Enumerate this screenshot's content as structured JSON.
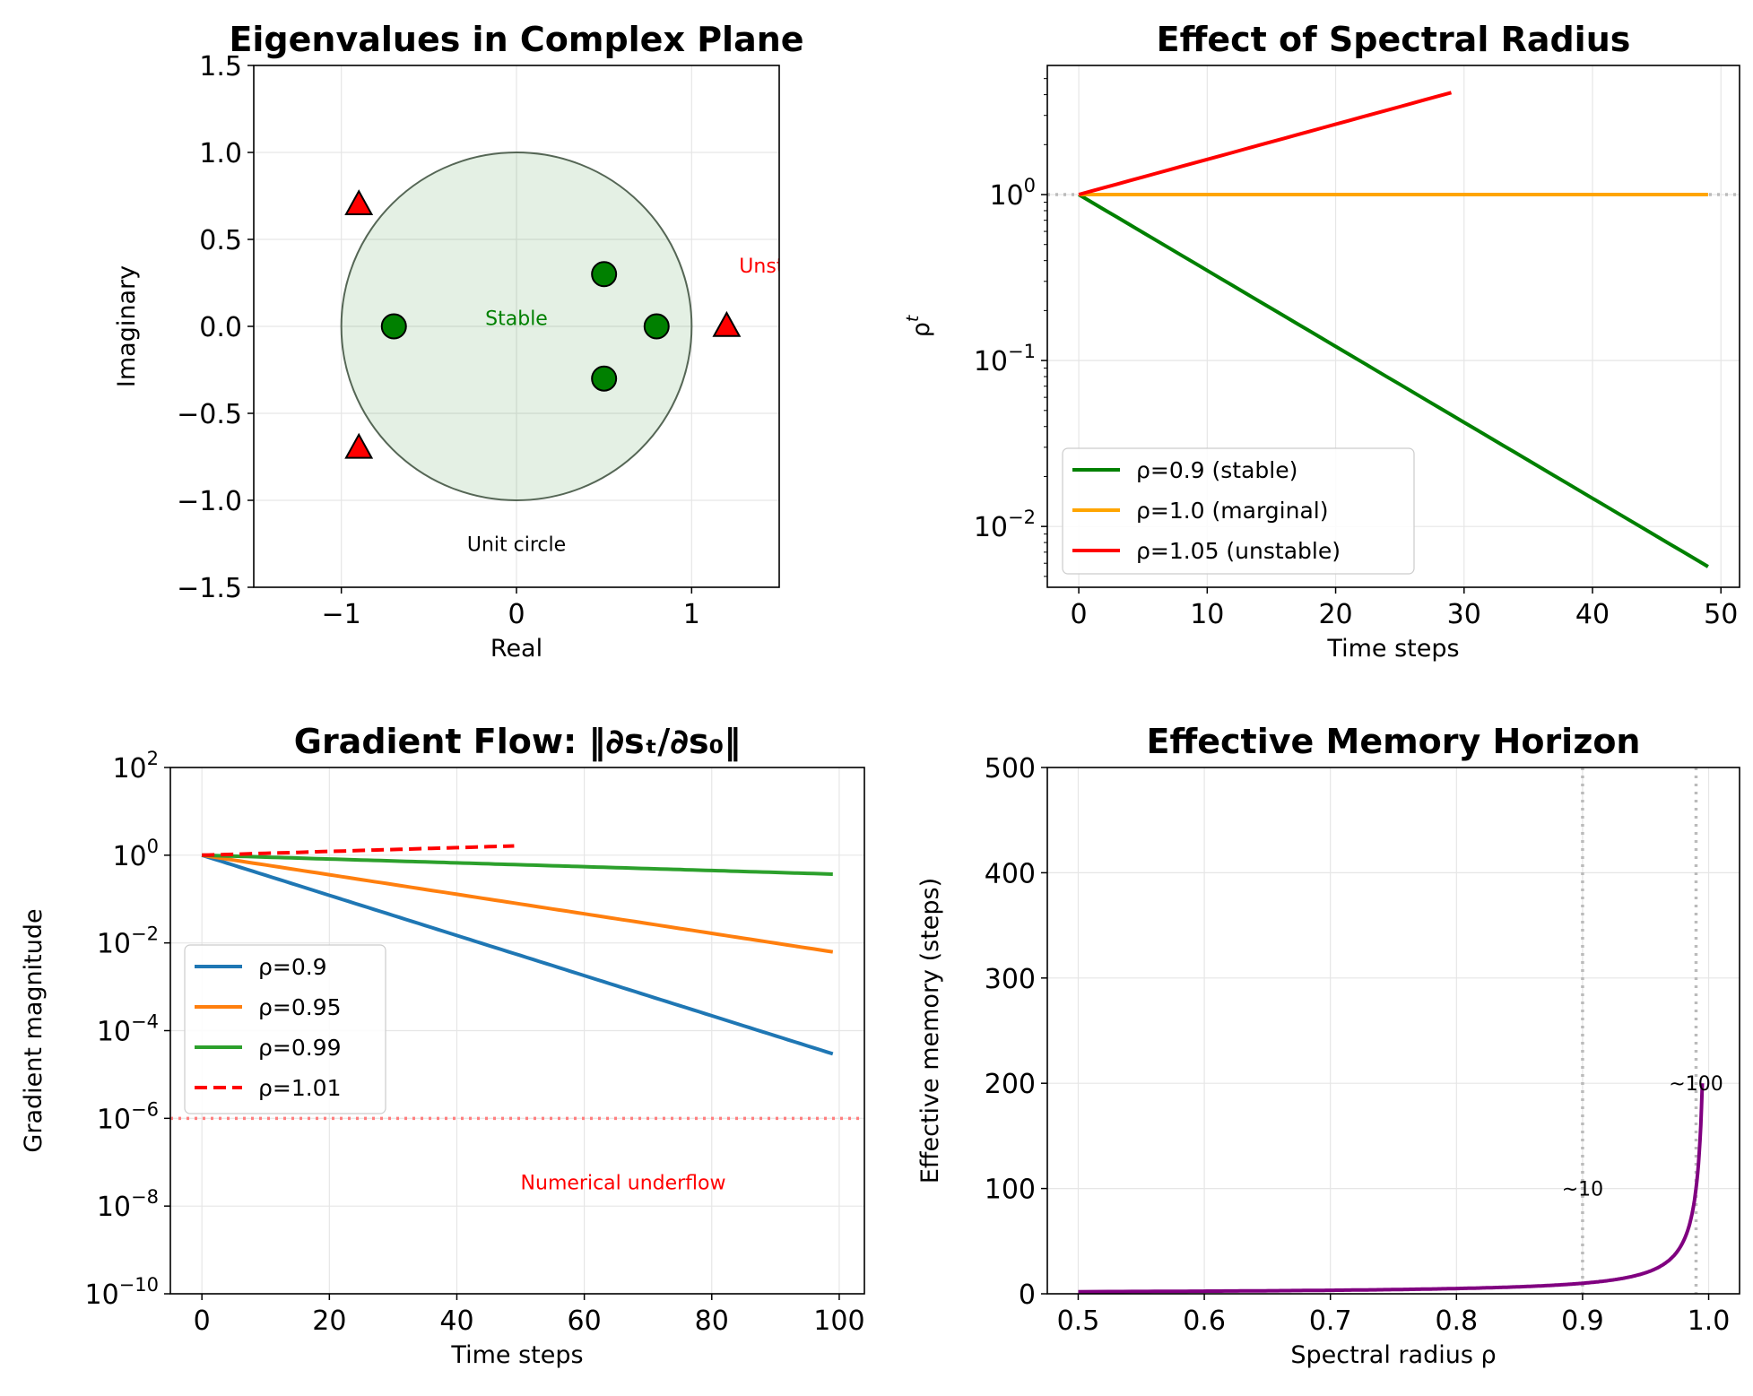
{
  "chart_data": [
    {
      "type": "scatter",
      "title": "Eigenvalues in Complex Plane",
      "xlabel": "Real",
      "ylabel": "Imaginary",
      "xlim": [
        -1.5,
        1.5
      ],
      "ylim": [
        -1.5,
        1.5
      ],
      "xticks": [
        -1,
        0,
        1
      ],
      "xtick_labels": [
        "−1",
        "0",
        "1"
      ],
      "yticks": [
        -1.5,
        -1.0,
        -0.5,
        0.0,
        0.5,
        1.0,
        1.5
      ],
      "ytick_labels": [
        "−1.5",
        "−1.0",
        "−0.5",
        "0.0",
        "0.5",
        "1.0",
        "1.5"
      ],
      "grid": true,
      "unit_circle": {
        "radius": 1,
        "fill": "#2e8b2e",
        "label": "Unit circle"
      },
      "series": [
        {
          "marker": "circle",
          "color": "#008000",
          "points": [
            [
              -0.7,
              0.0
            ],
            [
              0.5,
              0.3
            ],
            [
              0.5,
              -0.3
            ],
            [
              0.8,
              0.0
            ]
          ]
        },
        {
          "marker": "triangle",
          "color": "#ff0000",
          "points": [
            [
              -0.9,
              0.7
            ],
            [
              -0.9,
              -0.7
            ],
            [
              1.2,
              0.0
            ]
          ]
        }
      ],
      "annotations": [
        {
          "text": "Stable",
          "x": 0,
          "y": 0.05,
          "color": "#008000"
        },
        {
          "text": "Unstable",
          "x": 1.52,
          "y": 0.35,
          "color": "#ff0000"
        },
        {
          "text": "Unit circle",
          "x": 0,
          "y": -1.25,
          "color": "#000000"
        }
      ]
    },
    {
      "type": "line",
      "title": "Effect of Spectral Radius",
      "xlabel": "Time steps",
      "ylabel": "ρ",
      "ylabel_sup": "t",
      "yscale": "log",
      "xlim": [
        -2.45,
        51.45
      ],
      "ylim": [
        0.0043,
        6.0
      ],
      "xticks": [
        0,
        10,
        20,
        30,
        40,
        50
      ],
      "xtick_labels": [
        "0",
        "10",
        "20",
        "30",
        "40",
        "50"
      ],
      "yticks": [
        0.01,
        0.1,
        1
      ],
      "ytick_labels": [
        {
          "base": "10",
          "exp": "−2"
        },
        {
          "base": "10",
          "exp": "−1"
        },
        {
          "base": "10",
          "exp": "0"
        }
      ],
      "grid": true,
      "legend": "lower-left",
      "series": [
        {
          "name": "ρ=0.9 (stable)",
          "color": "#008000",
          "base": 0.9,
          "t": [
            0,
            49
          ]
        },
        {
          "name": "ρ=1.0 (marginal)",
          "color": "#ffa500",
          "base": 1.0,
          "t": [
            0,
            49
          ]
        },
        {
          "name": "ρ=1.05 (unstable)",
          "color": "#ff0000",
          "base": 1.05,
          "t": [
            0,
            29
          ]
        }
      ],
      "reference_line": {
        "y": 1,
        "color": "#bbbbbb",
        "style": "dotted"
      }
    },
    {
      "type": "line",
      "title": "Gradient Flow: ‖∂sₜ/∂s₀‖",
      "xlabel": "Time steps",
      "ylabel": "Gradient magnitude",
      "yscale": "log",
      "xlim": [
        -4.95,
        103.95
      ],
      "ylim": [
        1e-10,
        100
      ],
      "xticks": [
        0,
        20,
        40,
        60,
        80,
        100
      ],
      "xtick_labels": [
        "0",
        "20",
        "40",
        "60",
        "80",
        "100"
      ],
      "yticks": [
        1e-10,
        1e-08,
        1e-06,
        0.0001,
        0.01,
        1,
        100
      ],
      "ytick_labels": [
        {
          "base": "10",
          "exp": "−10"
        },
        {
          "base": "10",
          "exp": "−8"
        },
        {
          "base": "10",
          "exp": "−6"
        },
        {
          "base": "10",
          "exp": "−4"
        },
        {
          "base": "10",
          "exp": "−2"
        },
        {
          "base": "10",
          "exp": "0"
        },
        {
          "base": "10",
          "exp": "2"
        }
      ],
      "grid": true,
      "legend": "center-left",
      "series": [
        {
          "name": "ρ=0.9",
          "color": "#1f77b4",
          "base": 0.9,
          "t": [
            0,
            99
          ],
          "dashed": false
        },
        {
          "name": "ρ=0.95",
          "color": "#ff7f0e",
          "base": 0.95,
          "t": [
            0,
            99
          ],
          "dashed": false
        },
        {
          "name": "ρ=0.99",
          "color": "#2ca02c",
          "base": 0.99,
          "t": [
            0,
            99
          ],
          "dashed": false
        },
        {
          "name": "ρ=1.01",
          "color": "#ff0000",
          "base": 1.01,
          "t": [
            0,
            49
          ],
          "dashed": true
        }
      ],
      "reference_line": {
        "y": 1e-06,
        "color": "#ff8080",
        "style": "dotted"
      },
      "annotations": [
        {
          "text": "Numerical underflow",
          "x": 50,
          "y": 1e-07,
          "color": "#ff0000"
        }
      ]
    },
    {
      "type": "line",
      "title": "Effective Memory Horizon",
      "xlabel": "Spectral radius ρ",
      "ylabel": "Effective memory (steps)",
      "xlim": [
        0.4755,
        1.0245
      ],
      "ylim": [
        0,
        500
      ],
      "xticks": [
        0.5,
        0.6,
        0.7,
        0.8,
        0.9,
        1.0
      ],
      "xtick_labels": [
        "0.5",
        "0.6",
        "0.7",
        "0.8",
        "0.9",
        "1.0"
      ],
      "yticks": [
        0,
        100,
        200,
        300,
        400,
        500
      ],
      "ytick_labels": [
        "0",
        "100",
        "200",
        "300",
        "400",
        "500"
      ],
      "grid": true,
      "series": [
        {
          "color": "#800080",
          "formula": "1/(1-rho)",
          "rho_range": [
            0.5,
            0.995
          ]
        }
      ],
      "vertical_lines": [
        0.9,
        0.99
      ],
      "annotations": [
        {
          "text": "~10",
          "x": 0.9,
          "y": 100,
          "color": "#000000"
        },
        {
          "text": "~100",
          "x": 0.99,
          "y": 200,
          "color": "#000000"
        }
      ]
    }
  ]
}
